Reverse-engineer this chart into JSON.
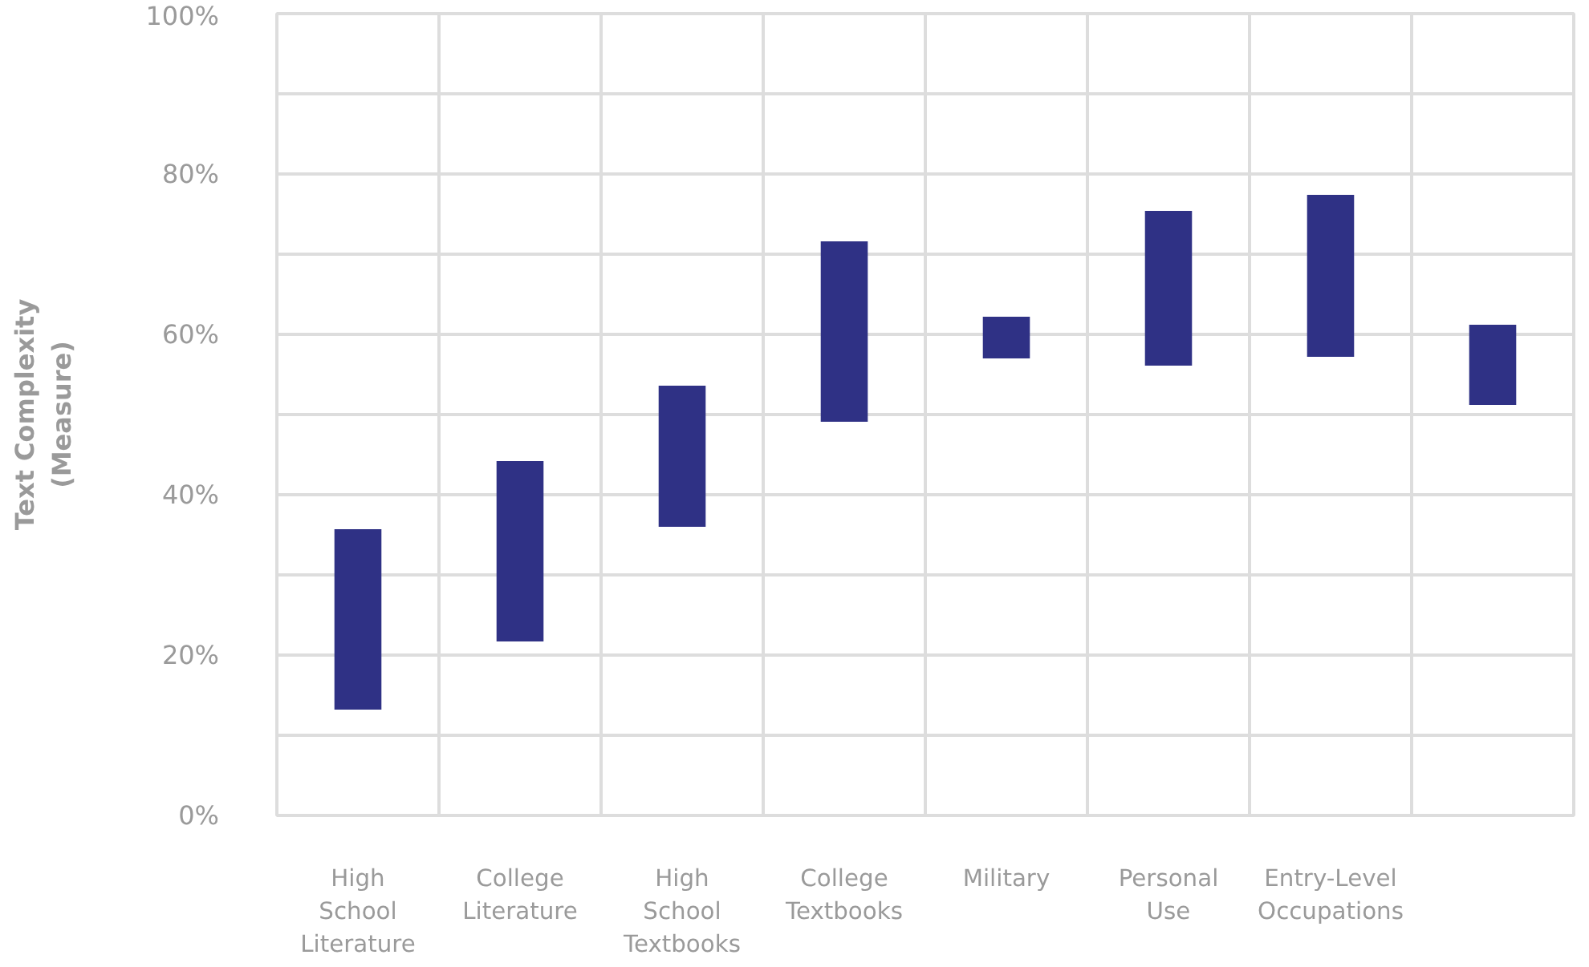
{
  "chart_data": {
    "type": "bar",
    "ylabel": "Text Complexity\n(Measure)",
    "categories": [
      "High\nSchool\nLiterature",
      "College\nLiterature",
      "High\nSchool\nTextbooks",
      "College\nTextbooks",
      "Military",
      "Personal\nUse",
      "Entry-Level\nOccupations",
      null
    ],
    "base": [
      13.2,
      21.7,
      36.0,
      49.1,
      57.0,
      56.1,
      57.2,
      51.2
    ],
    "values": [
      22.5,
      22.5,
      17.6,
      22.5,
      5.2,
      19.3,
      20.2,
      10.0
    ],
    "color": "#2f3185",
    "ylim": [
      0,
      100
    ],
    "yticks": [
      {
        "value": 0,
        "label": "0%"
      },
      {
        "value": 10,
        "label": null
      },
      {
        "value": 20,
        "label": "20%"
      },
      {
        "value": 30,
        "label": null
      },
      {
        "value": 40,
        "label": "40%"
      },
      {
        "value": 50,
        "label": null
      },
      {
        "value": 60,
        "label": "60%"
      },
      {
        "value": 70,
        "label": null
      },
      {
        "value": 80,
        "label": "80%"
      },
      {
        "value": 90,
        "label": null
      },
      {
        "value": 100,
        "label": "100%"
      }
    ],
    "grid": true
  }
}
